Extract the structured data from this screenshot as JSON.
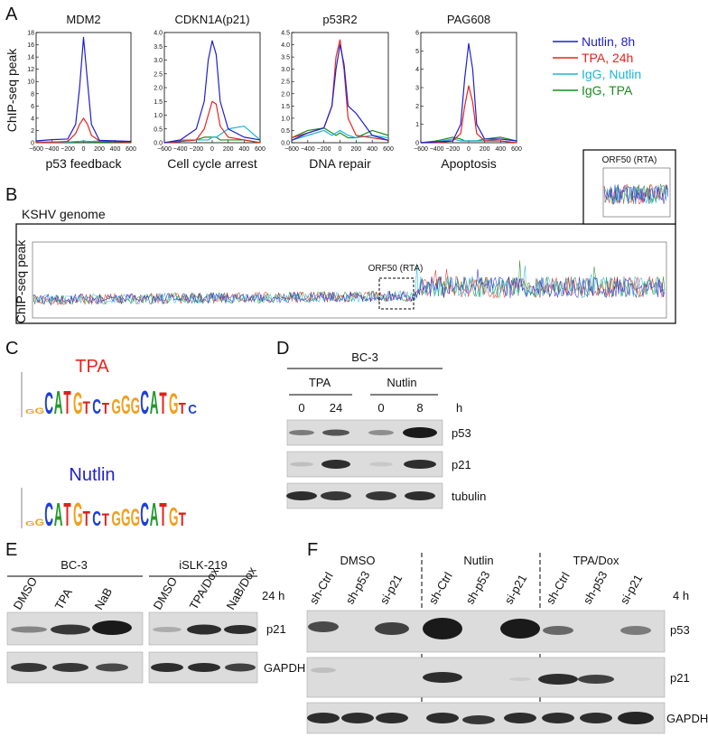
{
  "panel_labels": [
    "A",
    "B",
    "C",
    "D",
    "E",
    "F"
  ],
  "chart_data": [
    {
      "type": "line",
      "title": "MDM2",
      "xlabel": "p53 feedback",
      "ylabel": "ChIP-seq peak",
      "x": [
        -600,
        -400,
        -200,
        -100,
        -50,
        0,
        50,
        100,
        200,
        400,
        600
      ],
      "xlim": [
        -600,
        600
      ],
      "xticks": [
        {
          "value": -600,
          "label": "−600"
        },
        {
          "value": -400,
          "label": "−400"
        },
        {
          "value": -200,
          "label": "−200"
        },
        0,
        200,
        400,
        600
      ],
      "ylim": [
        0,
        18
      ],
      "yticks": [
        0,
        2,
        4,
        6,
        8,
        10,
        12,
        14,
        16,
        18
      ],
      "series": [
        {
          "name": "Nutlin, 8h",
          "color": "#1f1fd0",
          "values": [
            0.3,
            0.5,
            0.6,
            3,
            9,
            17.2,
            10,
            3,
            0.4,
            0.3,
            0.2
          ]
        },
        {
          "name": "TPA, 24h",
          "color": "#e8231e",
          "values": [
            0.1,
            0.1,
            0.2,
            1.5,
            3,
            4,
            3,
            1.2,
            0.3,
            0.2,
            0.1
          ]
        },
        {
          "name": "IgG, Nutlin",
          "color": "#19b5d8",
          "values": [
            0.1,
            0.1,
            0.1,
            0.2,
            0.2,
            0.3,
            0.2,
            0.2,
            0.3,
            0.3,
            0.2
          ]
        },
        {
          "name": "IgG, TPA",
          "color": "#1c8a1c",
          "values": [
            0.05,
            0.1,
            0.1,
            0.1,
            0.2,
            0.2,
            0.2,
            0.1,
            0.1,
            0.2,
            0.1
          ]
        }
      ]
    },
    {
      "type": "line",
      "title": "CDKN1A(p21)",
      "xlabel": "Cell cycle arrest",
      "x": [
        -600,
        -400,
        -200,
        -100,
        -50,
        0,
        50,
        100,
        200,
        400,
        600
      ],
      "xlim": [
        -600,
        600
      ],
      "xticks": [
        {
          "value": -600,
          "label": "−600"
        },
        {
          "value": -400,
          "label": "−400"
        },
        {
          "value": -200,
          "label": "−200"
        },
        0,
        200,
        400,
        600
      ],
      "ylim": [
        0,
        4
      ],
      "yticks": [
        {
          "value": 0,
          "label": "0.0"
        },
        0.5,
        {
          "value": 1,
          "label": "1.0"
        },
        1.5,
        {
          "value": 2,
          "label": "2.0"
        },
        2.5,
        {
          "value": 3,
          "label": "3.0"
        },
        3.5,
        {
          "value": 4,
          "label": "4.0"
        }
      ],
      "series": [
        {
          "name": "Nutlin, 8h",
          "color": "#1f1fd0",
          "values": [
            0,
            0.1,
            0.5,
            1.5,
            3.0,
            3.7,
            3.2,
            1.5,
            0.5,
            0.2,
            0.1
          ]
        },
        {
          "name": "TPA, 24h",
          "color": "#e8231e",
          "values": [
            0,
            0.05,
            0.1,
            0.5,
            1.0,
            1.5,
            1.4,
            0.6,
            0.2,
            0.1,
            0
          ]
        },
        {
          "name": "IgG, Nutlin",
          "color": "#19b5d8",
          "values": [
            0,
            0.1,
            0.1,
            0.1,
            0.1,
            0.2,
            0.2,
            0.3,
            0.5,
            0.6,
            0.1
          ]
        },
        {
          "name": "IgG, TPA",
          "color": "#1c8a1c",
          "values": [
            0,
            0.05,
            0.1,
            0.2,
            0.2,
            0.2,
            0.2,
            0.1,
            0.1,
            0.1,
            0
          ]
        }
      ]
    },
    {
      "type": "line",
      "title": "p53R2",
      "xlabel": "DNA repair",
      "x": [
        -600,
        -400,
        -200,
        -100,
        -50,
        0,
        50,
        100,
        200,
        400,
        600
      ],
      "xlim": [
        -600,
        600
      ],
      "xticks": [
        {
          "value": -600,
          "label": "−600"
        },
        {
          "value": -400,
          "label": "−400"
        },
        {
          "value": -200,
          "label": "−200"
        },
        0,
        200,
        400,
        600
      ],
      "ylim": [
        0,
        4.5
      ],
      "yticks": [
        {
          "value": 0,
          "label": "0.0"
        },
        0.5,
        {
          "value": 1,
          "label": "1.0"
        },
        1.5,
        {
          "value": 2,
          "label": "2.0"
        },
        2.5,
        {
          "value": 3,
          "label": "3.0"
        },
        3.5,
        {
          "value": 4,
          "label": "4.0"
        },
        4.5
      ],
      "series": [
        {
          "name": "Nutlin, 8h",
          "color": "#1f1fd0",
          "values": [
            0.1,
            0.4,
            0.6,
            1.5,
            3.0,
            4.0,
            3.2,
            1.5,
            1.2,
            0.3,
            0.1
          ]
        },
        {
          "name": "TPA, 24h",
          "color": "#e8231e",
          "values": [
            0.2,
            0.4,
            0.6,
            1.5,
            3.5,
            4.2,
            3.0,
            1.0,
            0.3,
            0.2,
            0.1
          ]
        },
        {
          "name": "IgG, Nutlin",
          "color": "#19b5d8",
          "values": [
            0.1,
            0.3,
            0.5,
            0.3,
            0.4,
            0.5,
            0.4,
            0.3,
            0.2,
            0.3,
            0.2
          ]
        },
        {
          "name": "IgG, TPA",
          "color": "#1c8a1c",
          "values": [
            0.2,
            0.5,
            0.6,
            0.4,
            0.3,
            0.4,
            0.3,
            0.2,
            0.2,
            0.5,
            0.3
          ]
        }
      ]
    },
    {
      "type": "line",
      "title": "PAG608",
      "xlabel": "Apoptosis",
      "x": [
        -600,
        -400,
        -200,
        -100,
        -50,
        0,
        50,
        100,
        200,
        400,
        600
      ],
      "xlim": [
        -600,
        600
      ],
      "xticks": [
        {
          "value": -600,
          "label": "−600"
        },
        {
          "value": -400,
          "label": "−400"
        },
        {
          "value": -200,
          "label": "−200"
        },
        0,
        200,
        400,
        600
      ],
      "ylim": [
        0,
        6
      ],
      "yticks": [
        0,
        1,
        2,
        3,
        4,
        5,
        6
      ],
      "series": [
        {
          "name": "Nutlin, 8h",
          "color": "#1f1fd0",
          "values": [
            0,
            0.05,
            0.1,
            1.0,
            3.5,
            5.4,
            4.0,
            1.0,
            0.2,
            0.2,
            0.1
          ]
        },
        {
          "name": "TPA, 24h",
          "color": "#e8231e",
          "values": [
            0,
            0,
            0.1,
            0.5,
            2.0,
            3.1,
            2.2,
            0.5,
            0.1,
            0.1,
            0
          ]
        },
        {
          "name": "IgG, Nutlin",
          "color": "#19b5d8",
          "values": [
            0,
            0.05,
            0.2,
            0.1,
            0.1,
            0.1,
            0.1,
            0.1,
            0.1,
            0.2,
            0.1
          ]
        },
        {
          "name": "IgG, TPA",
          "color": "#1c8a1c",
          "values": [
            0,
            0.1,
            0.3,
            0.2,
            0.1,
            0.1,
            0.1,
            0.1,
            0.2,
            0.3,
            0.1
          ]
        }
      ]
    }
  ],
  "panel_b": {
    "title": "KSHV genome",
    "ylabel": "ChIP-seq peak",
    "region_label": "ORF50 (RTA)",
    "inset_title": "ORF50 (RTA)"
  },
  "panel_c": {
    "logos": [
      {
        "title": "TPA",
        "letters": [
          "G",
          "G",
          "C",
          "A",
          "T",
          "G",
          "T",
          "C",
          "T",
          "G",
          "G",
          "G",
          "C",
          "A",
          "T",
          "G",
          "T",
          "C"
        ]
      },
      {
        "title": "Nutlin",
        "letters": [
          "G",
          "G",
          "C",
          "A",
          "T",
          "G",
          "T",
          "C",
          "T",
          "G",
          "G",
          "G",
          "C",
          "A",
          "T",
          "G",
          "T"
        ]
      }
    ]
  },
  "panel_d": {
    "cell_line": "BC-3",
    "groups": [
      "TPA",
      "Nutlin"
    ],
    "timepoints": [
      0,
      24,
      0,
      8
    ],
    "time_unit": "h",
    "proteins": [
      "p53",
      "p21",
      "tubulin"
    ]
  },
  "panel_e": {
    "groups": [
      {
        "name": "BC-3",
        "lanes": [
          "DMSO",
          "TPA",
          "NaB"
        ]
      },
      {
        "name": "iSLK-219",
        "lanes": [
          "DMSO",
          "TPA/Dox",
          "NaB/Dox"
        ]
      }
    ],
    "time": "24 h",
    "proteins": [
      "p21",
      "GAPDH"
    ]
  },
  "panel_f": {
    "groups": [
      {
        "name": "DMSO",
        "lanes": [
          "sh-Ctrl",
          "sh-p53",
          "si-p21"
        ]
      },
      {
        "name": "Nutlin",
        "lanes": [
          "sh-Ctrl",
          "sh-p53",
          "si-p21"
        ]
      },
      {
        "name": "TPA/Dox",
        "lanes": [
          "sh-Ctrl",
          "sh-p53",
          "si-p21"
        ]
      }
    ],
    "time": "4 h",
    "proteins": [
      "p53",
      "p21",
      "GAPDH"
    ]
  }
}
